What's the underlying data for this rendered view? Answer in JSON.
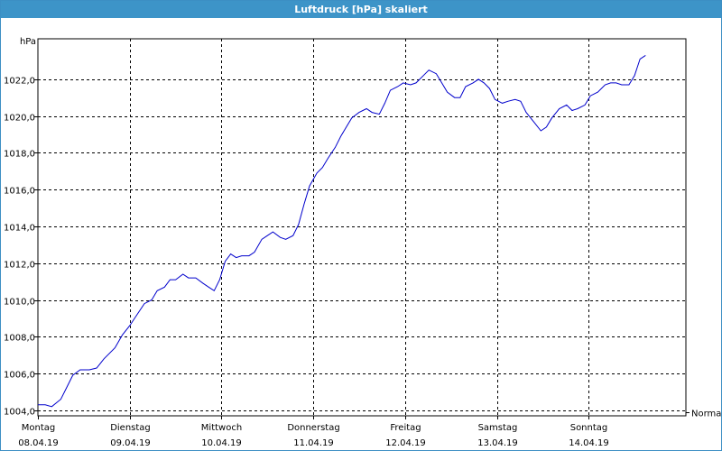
{
  "window": {
    "title": "Luftdruck [hPa] skaliert"
  },
  "colors": {
    "title_bar": "#3d94c8",
    "series_line": "#0000cc",
    "grid": "#000000"
  },
  "chart_data": {
    "type": "line",
    "title": "Luftdruck [hPa] skaliert",
    "ylabel": "hPa",
    "xlabel": "",
    "ylim": [
      1003.7,
      1024.2
    ],
    "xlim": [
      0,
      7
    ],
    "grid": true,
    "grid_style": "dashed",
    "legend_placement": "right",
    "y_ticks": [
      "1004,0",
      "1006,0",
      "1008,0",
      "1010,0",
      "1012,0",
      "1014,0",
      "1016,0",
      "1018,0",
      "1020,0",
      "1022,0"
    ],
    "x_ticks": [
      {
        "day": "Montag",
        "date": "08.04.19"
      },
      {
        "day": "Dienstag",
        "date": "09.04.19"
      },
      {
        "day": "Mittwoch",
        "date": "10.04.19"
      },
      {
        "day": "Donnerstag",
        "date": "11.04.19"
      },
      {
        "day": "Freitag",
        "date": "12.04.19"
      },
      {
        "day": "Samstag",
        "date": "13.04.19"
      },
      {
        "day": "Sonntag",
        "date": "14.04.19"
      }
    ],
    "series": [
      {
        "name": "Normal",
        "points": [
          [
            0.0,
            1004.3
          ],
          [
            0.08,
            1004.3
          ],
          [
            0.15,
            1004.2
          ],
          [
            0.25,
            1004.6
          ],
          [
            0.32,
            1005.3
          ],
          [
            0.38,
            1005.9
          ],
          [
            0.46,
            1006.2
          ],
          [
            0.56,
            1006.2
          ],
          [
            0.64,
            1006.3
          ],
          [
            0.72,
            1006.8
          ],
          [
            0.84,
            1007.4
          ],
          [
            0.92,
            1008.1
          ],
          [
            1.0,
            1008.6
          ],
          [
            1.08,
            1009.2
          ],
          [
            1.16,
            1009.8
          ],
          [
            1.24,
            1010.0
          ],
          [
            1.3,
            1010.5
          ],
          [
            1.38,
            1010.7
          ],
          [
            1.44,
            1011.1
          ],
          [
            1.5,
            1011.1
          ],
          [
            1.58,
            1011.4
          ],
          [
            1.64,
            1011.2
          ],
          [
            1.72,
            1011.2
          ],
          [
            1.8,
            1010.9
          ],
          [
            1.86,
            1010.7
          ],
          [
            1.92,
            1010.5
          ],
          [
            1.98,
            1011.1
          ],
          [
            2.04,
            1012.1
          ],
          [
            2.1,
            1012.5
          ],
          [
            2.16,
            1012.3
          ],
          [
            2.22,
            1012.4
          ],
          [
            2.3,
            1012.4
          ],
          [
            2.36,
            1012.6
          ],
          [
            2.44,
            1013.3
          ],
          [
            2.5,
            1013.5
          ],
          [
            2.56,
            1013.7
          ],
          [
            2.64,
            1013.4
          ],
          [
            2.7,
            1013.3
          ],
          [
            2.78,
            1013.5
          ],
          [
            2.84,
            1014.1
          ],
          [
            2.9,
            1015.2
          ],
          [
            2.96,
            1016.2
          ],
          [
            3.04,
            1016.9
          ],
          [
            3.1,
            1017.2
          ],
          [
            3.16,
            1017.7
          ],
          [
            3.24,
            1018.3
          ],
          [
            3.3,
            1018.9
          ],
          [
            3.36,
            1019.4
          ],
          [
            3.42,
            1019.9
          ],
          [
            3.5,
            1020.2
          ],
          [
            3.58,
            1020.4
          ],
          [
            3.64,
            1020.2
          ],
          [
            3.72,
            1020.1
          ],
          [
            3.78,
            1020.7
          ],
          [
            3.84,
            1021.4
          ],
          [
            3.92,
            1021.6
          ],
          [
            3.98,
            1021.8
          ],
          [
            4.06,
            1021.7
          ],
          [
            4.12,
            1021.8
          ],
          [
            4.2,
            1022.2
          ],
          [
            4.26,
            1022.5
          ],
          [
            4.34,
            1022.3
          ],
          [
            4.4,
            1021.8
          ],
          [
            4.46,
            1021.3
          ],
          [
            4.54,
            1021.0
          ],
          [
            4.6,
            1021.0
          ],
          [
            4.66,
            1021.6
          ],
          [
            4.74,
            1021.8
          ],
          [
            4.8,
            1022.0
          ],
          [
            4.86,
            1021.8
          ],
          [
            4.92,
            1021.5
          ],
          [
            4.98,
            1020.9
          ],
          [
            5.06,
            1020.7
          ],
          [
            5.12,
            1020.8
          ],
          [
            5.2,
            1020.9
          ],
          [
            5.26,
            1020.8
          ],
          [
            5.32,
            1020.2
          ],
          [
            5.4,
            1019.7
          ],
          [
            5.48,
            1019.2
          ],
          [
            5.54,
            1019.4
          ],
          [
            5.6,
            1019.9
          ],
          [
            5.68,
            1020.4
          ],
          [
            5.76,
            1020.6
          ],
          [
            5.82,
            1020.3
          ],
          [
            5.88,
            1020.4
          ],
          [
            5.96,
            1020.6
          ],
          [
            6.02,
            1021.1
          ],
          [
            6.1,
            1021.3
          ],
          [
            6.18,
            1021.7
          ],
          [
            6.24,
            1021.8
          ],
          [
            6.3,
            1021.8
          ],
          [
            6.36,
            1021.7
          ],
          [
            6.44,
            1021.7
          ],
          [
            6.5,
            1022.2
          ],
          [
            6.56,
            1023.1
          ],
          [
            6.62,
            1023.3
          ]
        ]
      }
    ]
  }
}
